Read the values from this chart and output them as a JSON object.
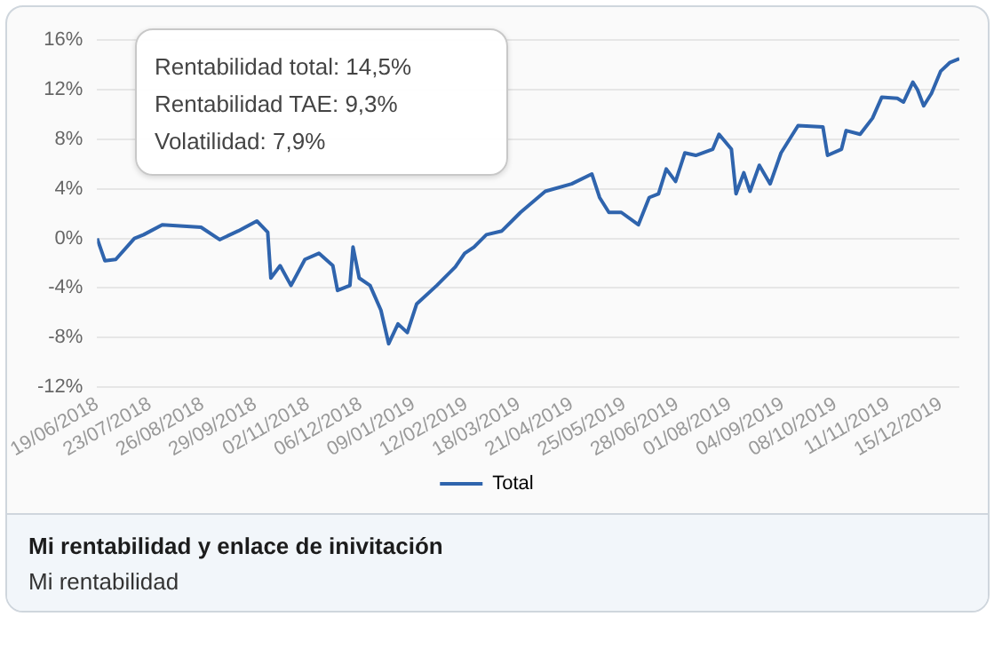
{
  "chart_data": {
    "type": "line",
    "title": "Mi rentabilidad y enlace de inivitación",
    "subtitle": "Mi rentabilidad",
    "annotations": [
      "Rentabilidad total: 14,5%",
      "Rentabilidad TAE: 9,3%",
      "Volatilidad: 7,9%"
    ],
    "series": [
      {
        "name": "Total",
        "color": "#2f64ad",
        "x": [
          "2018-06-19",
          "2018-06-24",
          "2018-07-01",
          "2018-07-13",
          "2018-07-19",
          "2018-07-31",
          "2018-08-25",
          "2018-09-06",
          "2018-09-18",
          "2018-09-30",
          "2018-10-07",
          "2018-10-09",
          "2018-10-15",
          "2018-10-22",
          "2018-10-31",
          "2018-11-09",
          "2018-11-18",
          "2018-11-21",
          "2018-11-29",
          "2018-12-01",
          "2018-12-05",
          "2018-12-12",
          "2018-12-19",
          "2018-12-24",
          "2018-12-30",
          "2019-01-05",
          "2019-01-11",
          "2019-01-24",
          "2019-02-05",
          "2019-02-11",
          "2019-02-17",
          "2019-02-25",
          "2019-03-07",
          "2019-03-19",
          "2019-04-04",
          "2019-04-21",
          "2019-05-04",
          "2019-05-09",
          "2019-05-15",
          "2019-05-23",
          "2019-06-03",
          "2019-06-10",
          "2019-06-16",
          "2019-06-21",
          "2019-06-27",
          "2019-07-03",
          "2019-07-10",
          "2019-07-21",
          "2019-07-25",
          "2019-08-02",
          "2019-08-05",
          "2019-08-10",
          "2019-08-14",
          "2019-08-20",
          "2019-08-27",
          "2019-09-03",
          "2019-09-08",
          "2019-09-14",
          "2019-09-30",
          "2019-10-03",
          "2019-10-12",
          "2019-10-15",
          "2019-10-24",
          "2019-11-01",
          "2019-11-07",
          "2019-11-17",
          "2019-11-21",
          "2019-11-27",
          "2019-11-30",
          "2019-12-04",
          "2019-12-09",
          "2019-12-15",
          "2019-12-21",
          "2019-12-27"
        ],
        "values": [
          0,
          -1.8,
          -1.7,
          0,
          0.3,
          1.1,
          0.9,
          -0.1,
          0.6,
          1.4,
          0.5,
          -3.2,
          -2.2,
          -3.8,
          -1.7,
          -1.2,
          -2.2,
          -4.2,
          -3.8,
          -0.7,
          -3.2,
          -3.8,
          -5.8,
          -8.5,
          -6.9,
          -7.6,
          -5.3,
          -3.8,
          -2.3,
          -1.2,
          -0.7,
          0.3,
          0.6,
          2.1,
          3.8,
          4.4,
          5.2,
          3.3,
          2.1,
          2.1,
          1.1,
          3.3,
          3.6,
          5.6,
          4.6,
          6.9,
          6.7,
          7.2,
          8.4,
          7.2,
          3.6,
          5.3,
          3.8,
          5.9,
          4.4,
          6.9,
          7.9,
          9.1,
          9.0,
          6.7,
          7.2,
          8.7,
          8.4,
          9.7,
          11.4,
          11.3,
          11.0,
          12.6,
          12.0,
          10.7,
          11.7,
          13.5,
          14.2,
          14.5
        ]
      }
    ],
    "xlim": [
      "2018-06-19",
      "2019-12-27"
    ],
    "xticks": [
      {
        "value": "2018-06-19",
        "label": "19/06/2018"
      },
      {
        "value": "2018-07-23",
        "label": "23/07/2018"
      },
      {
        "value": "2018-08-26",
        "label": "26/08/2018"
      },
      {
        "value": "2018-09-29",
        "label": "29/09/2018"
      },
      {
        "value": "2018-11-02",
        "label": "02/11/2018"
      },
      {
        "value": "2018-12-06",
        "label": "06/12/2018"
      },
      {
        "value": "2019-01-09",
        "label": "09/01/2019"
      },
      {
        "value": "2019-02-12",
        "label": "12/02/2019"
      },
      {
        "value": "2019-03-18",
        "label": "18/03/2019"
      },
      {
        "value": "2019-04-21",
        "label": "21/04/2019"
      },
      {
        "value": "2019-05-25",
        "label": "25/05/2019"
      },
      {
        "value": "2019-06-28",
        "label": "28/06/2019"
      },
      {
        "value": "2019-08-01",
        "label": "01/08/2019"
      },
      {
        "value": "2019-09-04",
        "label": "04/09/2019"
      },
      {
        "value": "2019-10-08",
        "label": "08/10/2019"
      },
      {
        "value": "2019-11-11",
        "label": "11/11/2019"
      },
      {
        "value": "2019-12-15",
        "label": "15/12/2019"
      }
    ],
    "ylim": [
      -12,
      16
    ],
    "yticks": [
      {
        "value": -12,
        "label": "-12%"
      },
      {
        "value": -8,
        "label": "-8%"
      },
      {
        "value": -4,
        "label": "-4%"
      },
      {
        "value": 0,
        "label": "0%"
      },
      {
        "value": 4,
        "label": "4%"
      },
      {
        "value": 8,
        "label": "8%"
      },
      {
        "value": 12,
        "label": "12%"
      },
      {
        "value": 16,
        "label": "16%"
      }
    ],
    "grid": "y",
    "legend": "bottom",
    "marker": "none",
    "line_style": "solid"
  }
}
